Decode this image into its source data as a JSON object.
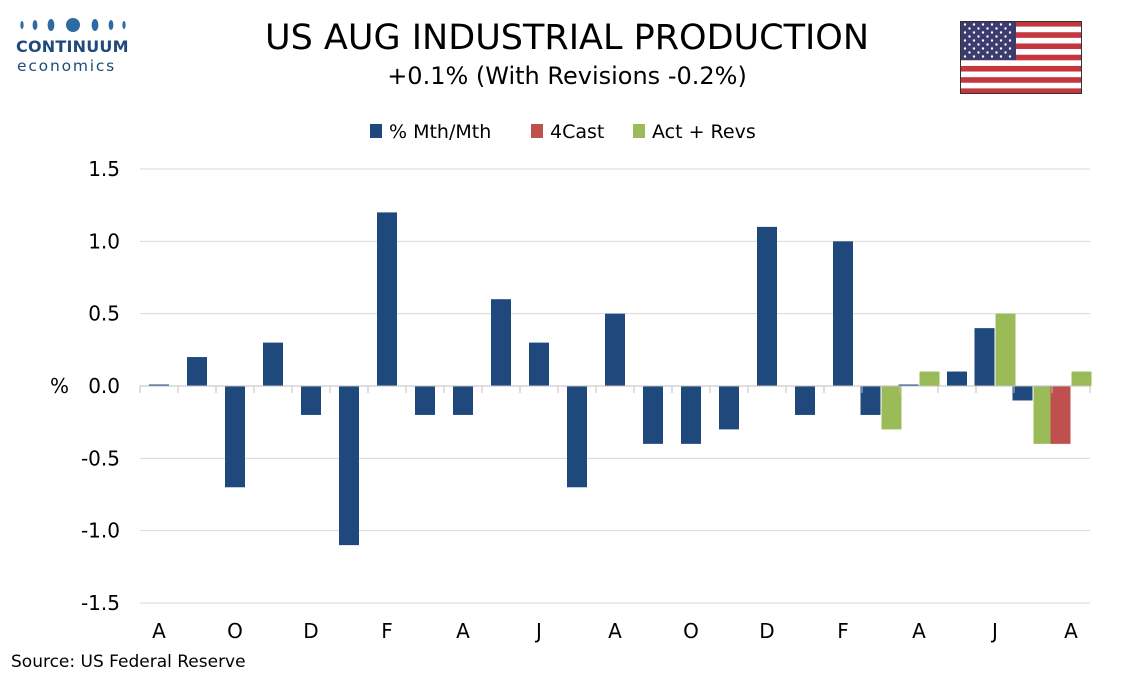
{
  "logo": {
    "brand": "CONTINUUM",
    "sub": "economics"
  },
  "title": "US AUG INDUSTRIAL PRODUCTION",
  "subtitle": "+0.1% (With Revisions -0.2%)",
  "source": "Source: US Federal Reserve",
  "flag_icon": "us-flag-icon",
  "colors": {
    "mth": "#1f497d",
    "fcast": "#c0504d",
    "rev": "#9bbb59",
    "brand": "#1f4a7a"
  },
  "chart_data": {
    "type": "bar",
    "ylabel": "%",
    "ylim": [
      -1.5,
      1.5
    ],
    "yticks": [
      1.5,
      1.0,
      0.5,
      0.0,
      -0.5,
      -1.0,
      -1.5
    ],
    "ytick_labels": [
      "1.5",
      "1.0",
      "0.5",
      "0.0",
      "-0.5",
      "-1.0",
      "-1.5"
    ],
    "grid": true,
    "legend_position": "top-center",
    "x_tick_labels": [
      "A",
      "O",
      "D",
      "F",
      "A",
      "J",
      "A",
      "O",
      "D",
      "F",
      "A",
      "J",
      "A"
    ],
    "x_tick_label_every": 2,
    "series": [
      {
        "name": "% Mth/Mth",
        "color": "#1f497d",
        "values": [
          0.01,
          0.2,
          -0.7,
          0.3,
          -0.2,
          -1.1,
          1.2,
          -0.2,
          -0.2,
          0.6,
          0.3,
          -0.7,
          0.5,
          -0.4,
          -0.4,
          -0.3,
          1.1,
          -0.2,
          1.0,
          -0.2,
          0.01,
          0.1,
          0.4,
          -0.1,
          null
        ]
      },
      {
        "name": "4Cast",
        "color": "#c0504d",
        "values": [
          null,
          null,
          null,
          null,
          null,
          null,
          null,
          null,
          null,
          null,
          null,
          null,
          null,
          null,
          null,
          null,
          null,
          null,
          null,
          null,
          null,
          null,
          null,
          null,
          -0.4
        ]
      },
      {
        "name": "Act + Revs",
        "color": "#9bbb59",
        "values": [
          null,
          null,
          null,
          null,
          null,
          null,
          null,
          null,
          null,
          null,
          null,
          null,
          null,
          null,
          null,
          null,
          null,
          null,
          null,
          -0.3,
          0.1,
          null,
          0.5,
          -0.4,
          0.1
        ]
      }
    ]
  }
}
